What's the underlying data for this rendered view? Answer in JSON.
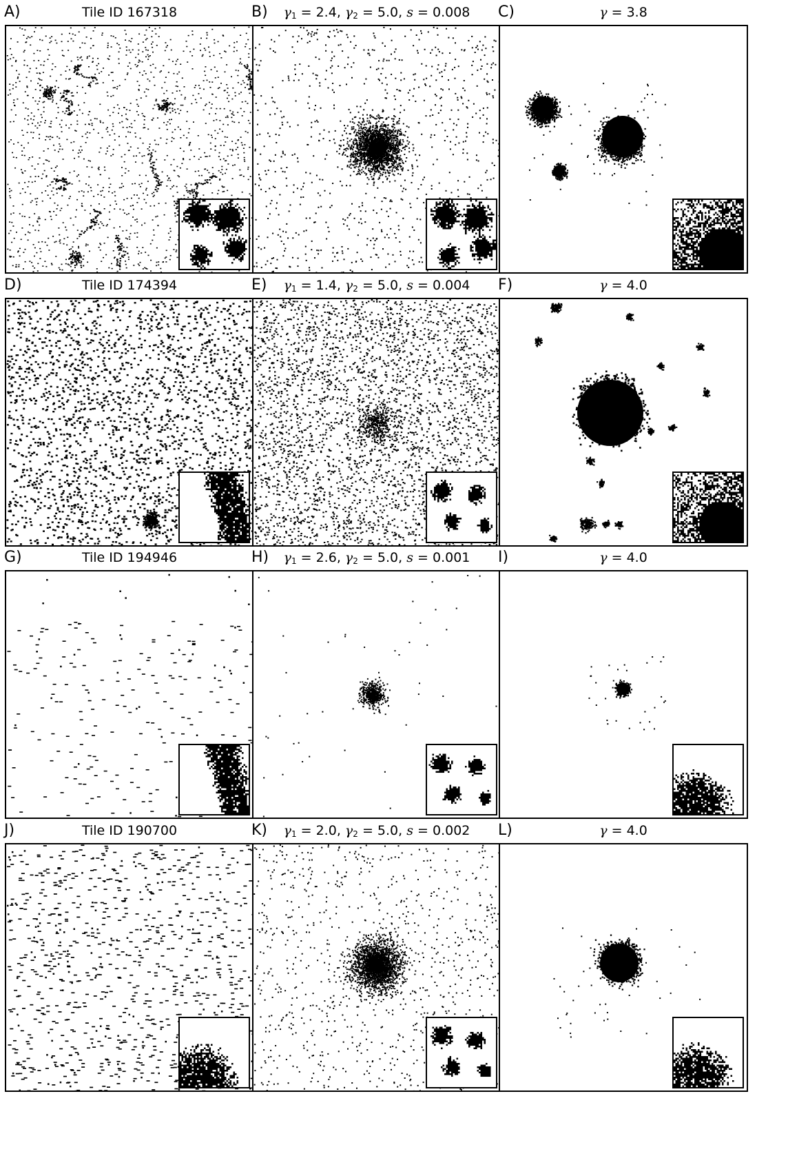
{
  "panels": [
    {
      "letter": "A)",
      "title": "Tile ID 167318",
      "kind": "tile",
      "style": "veins",
      "inset": "blobs-large"
    },
    {
      "letter": "B)",
      "title_parts": {
        "g1": "2.4",
        "g2": "5.0",
        "s": "0.008"
      },
      "kind": "model",
      "style": "sparse-center",
      "inset": "blobs-large"
    },
    {
      "letter": "C)",
      "title_parts": {
        "g": "3.8"
      },
      "kind": "single",
      "style": "three-clusters",
      "inset": "dense"
    },
    {
      "letter": "D)",
      "title": "Tile ID 174394",
      "kind": "tile",
      "style": "uniform-dense",
      "inset": "vertical-blob"
    },
    {
      "letter": "E)",
      "title_parts": {
        "g1": "1.4",
        "g2": "5.0",
        "s": "0.004"
      },
      "kind": "model",
      "style": "uniform-very-dense",
      "inset": "blobs-small"
    },
    {
      "letter": "F)",
      "title_parts": {
        "g": "4.0"
      },
      "kind": "single",
      "style": "big-cluster",
      "inset": "dense"
    },
    {
      "letter": "G)",
      "title": "Tile ID 194946",
      "kind": "tile",
      "style": "sparse-dashes",
      "inset": "vertical-blob"
    },
    {
      "letter": "H)",
      "title_parts": {
        "g1": "2.6",
        "g2": "5.0",
        "s": "0.001"
      },
      "kind": "model",
      "style": "small-center",
      "inset": "blobs-small"
    },
    {
      "letter": "I)",
      "title_parts": {
        "g": "4.0"
      },
      "kind": "single",
      "style": "tiny-cluster",
      "inset": "corner-blob"
    },
    {
      "letter": "J)",
      "title": "Tile ID 190700",
      "kind": "tile",
      "style": "dashes-dense",
      "inset": "corner-blob"
    },
    {
      "letter": "K)",
      "title_parts": {
        "g1": "2.0",
        "g2": "5.0",
        "s": "0.002"
      },
      "kind": "model",
      "style": "sparse-center",
      "inset": "blobs-small"
    },
    {
      "letter": "L)",
      "title_parts": {
        "g": "4.0"
      },
      "kind": "single",
      "style": "mid-cluster",
      "inset": "corner-blob"
    }
  ],
  "colors": {
    "ink": "#000000",
    "paper": "#ffffff"
  }
}
